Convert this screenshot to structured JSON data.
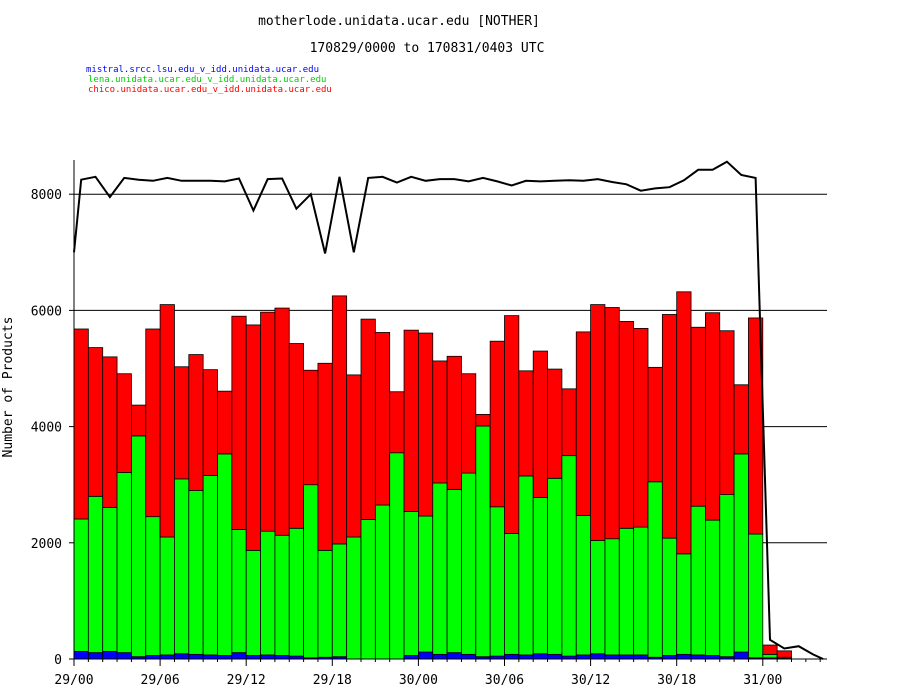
{
  "chart_data": {
    "type": "bar",
    "stacked": true,
    "title": "motherlode.unidata.ucar.edu [NOTHER]",
    "subtitle": "170829/0000 to 170831/0403 UTC",
    "ylabel": "Number of Products",
    "xlabel": "",
    "ylim": [
      0,
      8600
    ],
    "yticks": [
      0,
      2000,
      4000,
      6000,
      8000
    ],
    "xticks": [
      {
        "label": "29/00",
        "hour": 0
      },
      {
        "label": "29/06",
        "hour": 6
      },
      {
        "label": "29/12",
        "hour": 12
      },
      {
        "label": "29/18",
        "hour": 18
      },
      {
        "label": "30/00",
        "hour": 24
      },
      {
        "label": "30/06",
        "hour": 30
      },
      {
        "label": "30/12",
        "hour": 36
      },
      {
        "label": "30/18",
        "hour": 42
      },
      {
        "label": "31/00",
        "hour": 48
      }
    ],
    "xlim_hours": [
      0,
      52.6
    ],
    "grid": true,
    "legend_position": "top-left",
    "series": [
      {
        "name": "mistral.srcc.lsu.edu_v_idd.unidata.ucar.edu",
        "color": "#0000ff",
        "values": [
          130,
          110,
          130,
          110,
          40,
          60,
          70,
          90,
          80,
          70,
          60,
          110,
          60,
          70,
          60,
          50,
          20,
          30,
          40,
          0,
          0,
          0,
          0,
          60,
          120,
          80,
          110,
          80,
          40,
          50,
          80,
          70,
          90,
          80,
          50,
          70,
          90,
          70,
          70,
          70,
          30,
          60,
          80,
          70,
          60,
          40,
          120,
          20,
          20,
          10
        ]
      },
      {
        "name": "lena.unidata.ucar.edu_v_idd.unidata.ucar.edu",
        "color": "#00ff00",
        "values": [
          2280,
          2690,
          2480,
          3100,
          3800,
          2390,
          2030,
          3010,
          2820,
          3090,
          3470,
          2120,
          1810,
          2130,
          2070,
          2200,
          2980,
          1840,
          1940,
          2100,
          2400,
          2650,
          3550,
          2480,
          2340,
          2950,
          2810,
          3120,
          3970,
          2570,
          2080,
          3080,
          2690,
          3030,
          3450,
          2400,
          1950,
          2000,
          2180,
          2200,
          3020,
          2020,
          1730,
          2560,
          2330,
          2790,
          3410,
          2130,
          60,
          20
        ]
      },
      {
        "name": "chico.unidata.ucar.edu_v_idd.unidata.ucar.edu",
        "color": "#ff0000",
        "values": [
          3270,
          2560,
          2590,
          1700,
          530,
          3230,
          4000,
          1930,
          2340,
          1820,
          1080,
          3670,
          3880,
          3770,
          3910,
          3180,
          1970,
          3220,
          4270,
          2790,
          3450,
          2970,
          1050,
          3120,
          3150,
          2100,
          2290,
          1710,
          200,
          2850,
          3750,
          1810,
          2520,
          1880,
          1150,
          3160,
          4060,
          3980,
          3560,
          3420,
          1970,
          3850,
          4510,
          3080,
          3570,
          2820,
          1190,
          3720,
          160,
          110
        ]
      }
    ],
    "total": {
      "name": "total",
      "color": "#000000",
      "points": [
        [
          0,
          7000
        ],
        [
          0.5,
          8250
        ],
        [
          1.5,
          8300
        ],
        [
          2.5,
          7950
        ],
        [
          3.5,
          8280
        ],
        [
          4.5,
          8250
        ],
        [
          5.5,
          8230
        ],
        [
          6.5,
          8280
        ],
        [
          7.5,
          8230
        ],
        [
          8.5,
          8230
        ],
        [
          9.5,
          8230
        ],
        [
          10.5,
          8220
        ],
        [
          11.5,
          8270
        ],
        [
          12.5,
          7720
        ],
        [
          13.5,
          8260
        ],
        [
          14.5,
          8270
        ],
        [
          15.5,
          7750
        ],
        [
          16.5,
          8000
        ],
        [
          17.5,
          6980
        ],
        [
          18.5,
          8300
        ],
        [
          19.5,
          7000
        ],
        [
          20.5,
          8280
        ],
        [
          21.5,
          8300
        ],
        [
          22.5,
          8200
        ],
        [
          23.5,
          8300
        ],
        [
          24.5,
          8230
        ],
        [
          25.5,
          8260
        ],
        [
          26.5,
          8260
        ],
        [
          27.5,
          8220
        ],
        [
          28.5,
          8280
        ],
        [
          29.5,
          8220
        ],
        [
          30.5,
          8150
        ],
        [
          31.5,
          8230
        ],
        [
          32.5,
          8220
        ],
        [
          33.5,
          8230
        ],
        [
          34.5,
          8240
        ],
        [
          35.5,
          8230
        ],
        [
          36.5,
          8260
        ],
        [
          37.5,
          8210
        ],
        [
          38.5,
          8170
        ],
        [
          39.5,
          8060
        ],
        [
          40.5,
          8100
        ],
        [
          41.5,
          8120
        ],
        [
          42.5,
          8240
        ],
        [
          43.5,
          8420
        ],
        [
          44.5,
          8420
        ],
        [
          45.5,
          8560
        ],
        [
          46.5,
          8330
        ],
        [
          47.5,
          8280
        ],
        [
          48.5,
          330
        ],
        [
          49.5,
          180
        ],
        [
          50.5,
          220
        ],
        [
          51.5,
          80
        ],
        [
          52.2,
          0
        ]
      ]
    }
  }
}
